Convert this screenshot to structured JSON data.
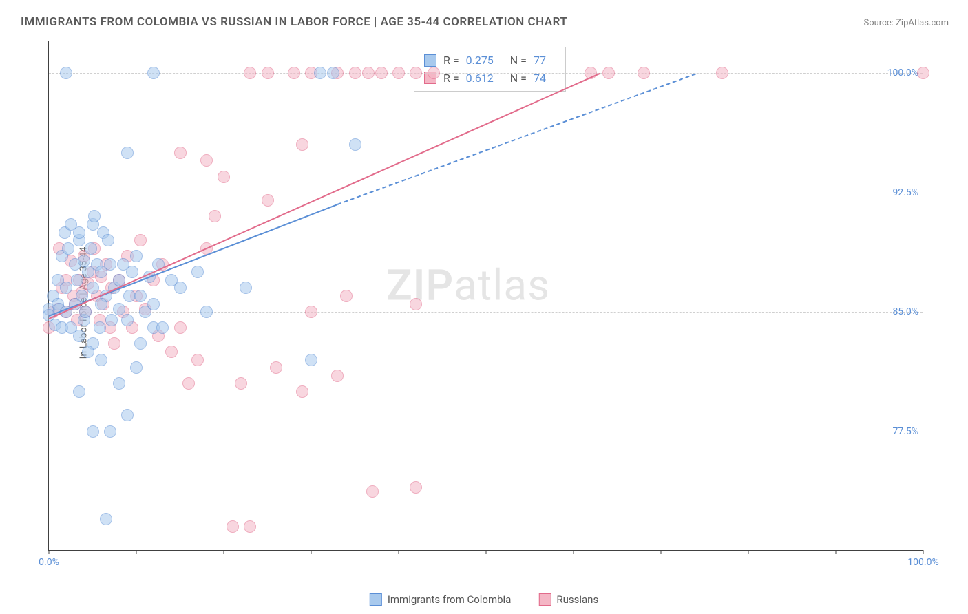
{
  "title": "IMMIGRANTS FROM COLOMBIA VS RUSSIAN IN LABOR FORCE | AGE 35-44 CORRELATION CHART",
  "source": "Source: ZipAtlas.com",
  "watermark_bold": "ZIP",
  "watermark_light": "atlas",
  "y_axis_label": "In Labor Force | Age 35-44",
  "chart": {
    "type": "scatter",
    "xlim": [
      0,
      100
    ],
    "ylim": [
      70,
      102
    ],
    "y_ticks": [
      77.5,
      85.0,
      92.5,
      100.0
    ],
    "y_tick_labels": [
      "77.5%",
      "85.0%",
      "92.5%",
      "100.0%"
    ],
    "x_ticks": [
      0,
      10,
      20,
      30,
      40,
      50,
      60,
      70,
      80,
      90,
      100
    ],
    "x_tick_labels_shown": {
      "0": "0.0%",
      "100": "100.0%"
    },
    "background_color": "#ffffff",
    "grid_color": "#d0d0d0",
    "border_color": "#404040"
  },
  "series": {
    "colombia": {
      "label": "Immigrants from Colombia",
      "fill": "#a8c9ed",
      "stroke": "#5b8fd6",
      "fill_opacity": 0.55,
      "marker_radius": 9,
      "R": "0.275",
      "N": "77",
      "trend": {
        "x1": 0,
        "y1": 84.8,
        "x2": 33,
        "y2": 91.8,
        "solid": true,
        "dash_x2": 74,
        "dash_y2": 100.0
      },
      "points": [
        [
          0,
          85.2
        ],
        [
          0,
          84.8
        ],
        [
          0.5,
          86.0
        ],
        [
          0.7,
          84.2
        ],
        [
          1,
          85.5
        ],
        [
          1,
          87.0
        ],
        [
          1.2,
          85.2
        ],
        [
          1.5,
          88.5
        ],
        [
          1.5,
          84.0
        ],
        [
          1.8,
          90.0
        ],
        [
          2,
          85.0
        ],
        [
          2,
          86.5
        ],
        [
          2.2,
          89.0
        ],
        [
          2.5,
          84.0
        ],
        [
          2.5,
          90.5
        ],
        [
          3,
          88.0
        ],
        [
          3,
          85.5
        ],
        [
          3.2,
          87.0
        ],
        [
          3.5,
          89.5
        ],
        [
          3.5,
          90.0
        ],
        [
          3.8,
          86.0
        ],
        [
          4,
          88.2
        ],
        [
          4,
          84.5
        ],
        [
          4.2,
          85.0
        ],
        [
          4.5,
          87.5
        ],
        [
          4.8,
          89.0
        ],
        [
          5,
          86.5
        ],
        [
          5,
          90.5
        ],
        [
          5.2,
          91.0
        ],
        [
          5.5,
          88.0
        ],
        [
          5.8,
          84.0
        ],
        [
          6,
          87.5
        ],
        [
          6.2,
          90.0
        ],
        [
          6.5,
          86.0
        ],
        [
          6.8,
          89.5
        ],
        [
          5,
          83.0
        ],
        [
          6,
          85.5
        ],
        [
          7,
          88.0
        ],
        [
          7.2,
          84.5
        ],
        [
          7.5,
          86.5
        ],
        [
          8,
          85.2
        ],
        [
          8,
          87.0
        ],
        [
          8.5,
          88.0
        ],
        [
          9,
          84.5
        ],
        [
          9.2,
          86.0
        ],
        [
          9.5,
          87.5
        ],
        [
          10,
          88.5
        ],
        [
          10.5,
          86.0
        ],
        [
          11,
          85.0
        ],
        [
          11.5,
          87.2
        ],
        [
          12,
          85.5
        ],
        [
          12,
          84.0
        ],
        [
          12.5,
          88.0
        ],
        [
          14,
          87.0
        ],
        [
          15,
          86.5
        ],
        [
          17,
          87.5
        ],
        [
          3.5,
          80.0
        ],
        [
          5,
          77.5
        ],
        [
          7,
          77.5
        ],
        [
          9,
          78.5
        ],
        [
          6,
          82.0
        ],
        [
          10,
          81.5
        ],
        [
          4.5,
          82.5
        ],
        [
          6.5,
          72.0
        ],
        [
          9,
          95.0
        ],
        [
          12,
          100.0
        ],
        [
          2,
          100.0
        ],
        [
          31,
          100.0
        ],
        [
          32.5,
          100.0
        ],
        [
          35,
          95.5
        ],
        [
          30,
          82.0
        ],
        [
          10.5,
          83.0
        ],
        [
          3.5,
          83.5
        ],
        [
          8,
          80.5
        ],
        [
          13,
          84.0
        ],
        [
          18,
          85.0
        ],
        [
          22.5,
          86.5
        ]
      ]
    },
    "russians": {
      "label": "Russians",
      "fill": "#f4b6c5",
      "stroke": "#e26b8b",
      "fill_opacity": 0.55,
      "marker_radius": 9,
      "R": "0.612",
      "N": "74",
      "trend": {
        "x1": 0,
        "y1": 84.6,
        "x2": 63,
        "y2": 100.0,
        "solid": true
      },
      "points": [
        [
          0,
          84.0
        ],
        [
          0.5,
          85.0
        ],
        [
          1,
          85.2
        ],
        [
          1.2,
          89.0
        ],
        [
          1.5,
          86.5
        ],
        [
          2,
          87.0
        ],
        [
          2.0,
          85.0
        ],
        [
          2.5,
          88.2
        ],
        [
          2.8,
          86.0
        ],
        [
          3,
          85.5
        ],
        [
          3.2,
          84.5
        ],
        [
          3.5,
          87.0
        ],
        [
          3.8,
          86.2
        ],
        [
          4,
          88.5
        ],
        [
          4.2,
          85.0
        ],
        [
          4.5,
          86.8
        ],
        [
          5,
          87.5
        ],
        [
          5.2,
          89.0
        ],
        [
          5.5,
          86.0
        ],
        [
          5.8,
          84.5
        ],
        [
          6,
          87.2
        ],
        [
          6.2,
          85.5
        ],
        [
          6.5,
          88.0
        ],
        [
          7,
          84.0
        ],
        [
          7.2,
          86.5
        ],
        [
          7.5,
          83.0
        ],
        [
          8,
          87.0
        ],
        [
          8.5,
          85.0
        ],
        [
          9,
          88.5
        ],
        [
          9.5,
          84.0
        ],
        [
          10,
          86.0
        ],
        [
          10.5,
          89.5
        ],
        [
          11,
          85.2
        ],
        [
          12,
          87.0
        ],
        [
          12.5,
          83.5
        ],
        [
          13,
          88.0
        ],
        [
          14,
          82.5
        ],
        [
          15,
          84.0
        ],
        [
          16,
          80.5
        ],
        [
          17,
          82.0
        ],
        [
          18,
          89.0
        ],
        [
          15,
          95.0
        ],
        [
          18,
          94.5
        ],
        [
          19,
          91.0
        ],
        [
          20,
          93.5
        ],
        [
          22,
          80.5
        ],
        [
          25,
          92.0
        ],
        [
          26,
          81.5
        ],
        [
          29,
          95.5
        ],
        [
          29,
          80.0
        ],
        [
          30,
          85.0
        ],
        [
          33,
          81.0
        ],
        [
          23,
          100.0
        ],
        [
          25,
          100.0
        ],
        [
          28,
          100.0
        ],
        [
          30,
          100.0
        ],
        [
          33,
          100.0
        ],
        [
          35,
          100.0
        ],
        [
          36.5,
          100.0
        ],
        [
          38,
          100.0
        ],
        [
          40,
          100.0
        ],
        [
          42,
          100.0
        ],
        [
          42,
          85.5
        ],
        [
          44,
          100.0
        ],
        [
          62,
          100.0
        ],
        [
          64,
          100.0
        ],
        [
          68,
          100.0
        ],
        [
          77,
          100.0
        ],
        [
          100,
          100.0
        ],
        [
          34,
          86.0
        ],
        [
          37,
          73.7
        ],
        [
          42,
          74.0
        ],
        [
          21,
          71.5
        ],
        [
          23,
          71.5
        ]
      ]
    }
  },
  "stats_labels": {
    "R": "R =",
    "N": "N ="
  }
}
